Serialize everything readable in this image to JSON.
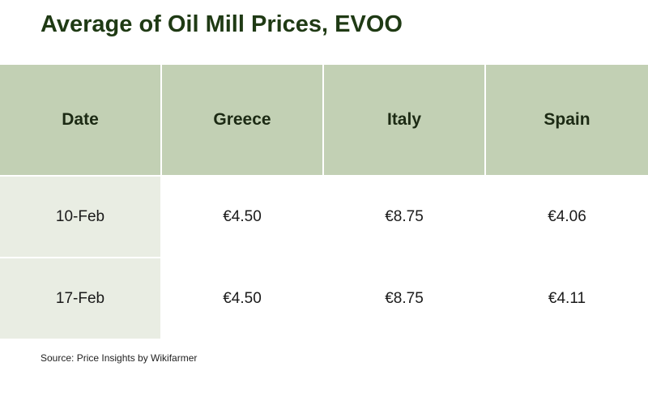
{
  "header": {
    "title": "Average of Oil Mill Prices, EVOO"
  },
  "table": {
    "columns": [
      "Date",
      "Greece",
      "Italy",
      "Spain"
    ],
    "rows": [
      [
        "10-Feb",
        "€4.50",
        "€8.75",
        "€4.06"
      ],
      [
        "17-Feb",
        "€4.50",
        "€8.75",
        "€4.11"
      ]
    ]
  },
  "footer": {
    "source": "Source: Price Insights by Wikifarmer"
  }
}
